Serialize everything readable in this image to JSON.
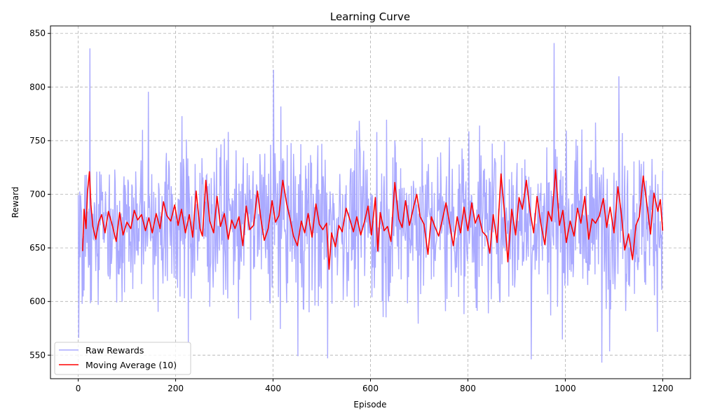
{
  "chart_data": {
    "type": "line",
    "title": "Learning Curve",
    "xlabel": "Episode",
    "ylabel": "Reward",
    "xlim": [
      -57,
      1257
    ],
    "ylim": [
      528,
      857
    ],
    "xticks": [
      0,
      200,
      400,
      600,
      800,
      1000,
      1200
    ],
    "yticks": [
      550,
      600,
      650,
      700,
      750,
      800,
      850
    ],
    "grid": true,
    "grid_style": "dashed",
    "legend_position": "lower-left",
    "series": [
      {
        "name": "Raw Rewards",
        "color": "#aaaaff",
        "n_points": 1201,
        "x_range": [
          0,
          1200
        ],
        "summary": {
          "mean": 675,
          "min": 543,
          "max": 841
        },
        "notable_points": [
          {
            "x": 1,
            "y": 566
          },
          {
            "x": 24,
            "y": 836
          },
          {
            "x": 401,
            "y": 816
          },
          {
            "x": 451,
            "y": 549
          },
          {
            "x": 512,
            "y": 547
          },
          {
            "x": 930,
            "y": 546
          },
          {
            "x": 977,
            "y": 841
          },
          {
            "x": 1075,
            "y": 543
          },
          {
            "x": 1110,
            "y": 810
          }
        ]
      },
      {
        "name": "Moving Average (10)",
        "color": "#ff0000",
        "window": 10,
        "x": [
          9,
          12,
          16,
          19,
          23,
          26,
          30,
          36,
          42,
          48,
          55,
          62,
          70,
          78,
          85,
          92,
          100,
          108,
          115,
          122,
          130,
          138,
          145,
          152,
          160,
          168,
          175,
          182,
          190,
          198,
          205,
          212,
          220,
          228,
          235,
          242,
          250,
          255,
          262,
          270,
          278,
          285,
          292,
          300,
          308,
          315,
          322,
          330,
          338,
          345,
          352,
          360,
          368,
          375,
          382,
          390,
          398,
          405,
          412,
          420,
          428,
          435,
          442,
          450,
          458,
          465,
          472,
          480,
          488,
          495,
          502,
          510,
          515,
          520,
          528,
          535,
          542,
          550,
          558,
          565,
          572,
          580,
          588,
          595,
          602,
          610,
          615,
          620,
          628,
          635,
          642,
          650,
          658,
          665,
          672,
          680,
          688,
          695,
          702,
          710,
          718,
          725,
          732,
          740,
          748,
          755,
          762,
          770,
          778,
          785,
          792,
          800,
          808,
          815,
          822,
          830,
          838,
          845,
          852,
          860,
          868,
          875,
          882,
          890,
          898,
          905,
          912,
          920,
          928,
          935,
          942,
          950,
          958,
          965,
          972,
          980,
          988,
          995,
          1002,
          1010,
          1018,
          1025,
          1032,
          1040,
          1048,
          1055,
          1062,
          1070,
          1078,
          1085,
          1092,
          1100,
          1108,
          1115,
          1122,
          1130,
          1138,
          1145,
          1152,
          1160,
          1168,
          1175,
          1182,
          1190,
          1195,
          1200
        ],
        "y": [
          647,
          686,
          668,
          702,
          721,
          690,
          670,
          658,
          674,
          681,
          664,
          684,
          671,
          656,
          683,
          662,
          674,
          668,
          685,
          676,
          681,
          666,
          678,
          664,
          682,
          668,
          693,
          680,
          675,
          690,
          671,
          686,
          664,
          681,
          660,
          703,
          668,
          661,
          713,
          675,
          664,
          698,
          670,
          682,
          658,
          676,
          668,
          679,
          652,
          689,
          667,
          671,
          703,
          677,
          657,
          668,
          694,
          674,
          680,
          713,
          691,
          677,
          661,
          652,
          675,
          664,
          682,
          660,
          691,
          672,
          667,
          673,
          630,
          664,
          651,
          671,
          665,
          687,
          676,
          665,
          679,
          662,
          675,
          689,
          662,
          697,
          647,
          683,
          666,
          670,
          656,
          711,
          677,
          669,
          694,
          671,
          687,
          700,
          679,
          672,
          644,
          679,
          670,
          661,
          677,
          692,
          674,
          652,
          679,
          664,
          688,
          666,
          692,
          673,
          681,
          665,
          661,
          645,
          681,
          655,
          719,
          683,
          637,
          686,
          662,
          697,
          686,
          713,
          683,
          664,
          698,
          672,
          653,
          684,
          675,
          723,
          671,
          685,
          655,
          675,
          661,
          687,
          673,
          698,
          658,
          677,
          673,
          680,
          696,
          669,
          688,
          664,
          707,
          682,
          648,
          663,
          639,
          671,
          679,
          717,
          689,
          663,
          701,
          684,
          695,
          666
        ]
      }
    ]
  }
}
